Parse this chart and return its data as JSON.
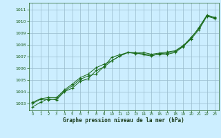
{
  "title": "Graphe pression niveau de la mer (hPa)",
  "bg_color": "#cceeff",
  "grid_color": "#99bbcc",
  "line_color": "#1a6b1a",
  "marker_color": "#1a6b1a",
  "xlim": [
    -0.5,
    23.5
  ],
  "ylim": [
    1002.4,
    1011.6
  ],
  "yticks": [
    1003,
    1004,
    1005,
    1006,
    1007,
    1008,
    1009,
    1010,
    1011
  ],
  "xticks": [
    0,
    1,
    2,
    3,
    4,
    5,
    6,
    7,
    8,
    9,
    10,
    11,
    12,
    13,
    14,
    15,
    16,
    17,
    18,
    19,
    20,
    21,
    22,
    23
  ],
  "series": [
    [
      1002.7,
      1003.1,
      1003.4,
      1003.3,
      1004.0,
      1004.3,
      1004.9,
      1005.1,
      1005.8,
      1006.1,
      1006.65,
      1007.05,
      1007.35,
      1007.25,
      1007.25,
      1007.1,
      1007.2,
      1007.2,
      1007.35,
      1007.85,
      1008.5,
      1009.3,
      1010.45,
      1010.25
    ],
    [
      1003.0,
      1003.35,
      1003.3,
      1003.4,
      1004.05,
      1004.5,
      1005.05,
      1005.35,
      1005.5,
      1006.15,
      1006.95,
      1007.15,
      1007.35,
      1007.35,
      1007.15,
      1007.05,
      1007.25,
      1007.3,
      1007.45,
      1007.9,
      1008.65,
      1009.4,
      1010.5,
      1010.3
    ],
    [
      1003.1,
      1003.4,
      1003.5,
      1003.5,
      1004.15,
      1004.65,
      1005.2,
      1005.5,
      1006.05,
      1006.35,
      1006.65,
      1007.05,
      1007.35,
      1007.3,
      1007.35,
      1007.2,
      1007.3,
      1007.4,
      1007.5,
      1007.95,
      1008.55,
      1009.5,
      1010.55,
      1010.35
    ]
  ]
}
